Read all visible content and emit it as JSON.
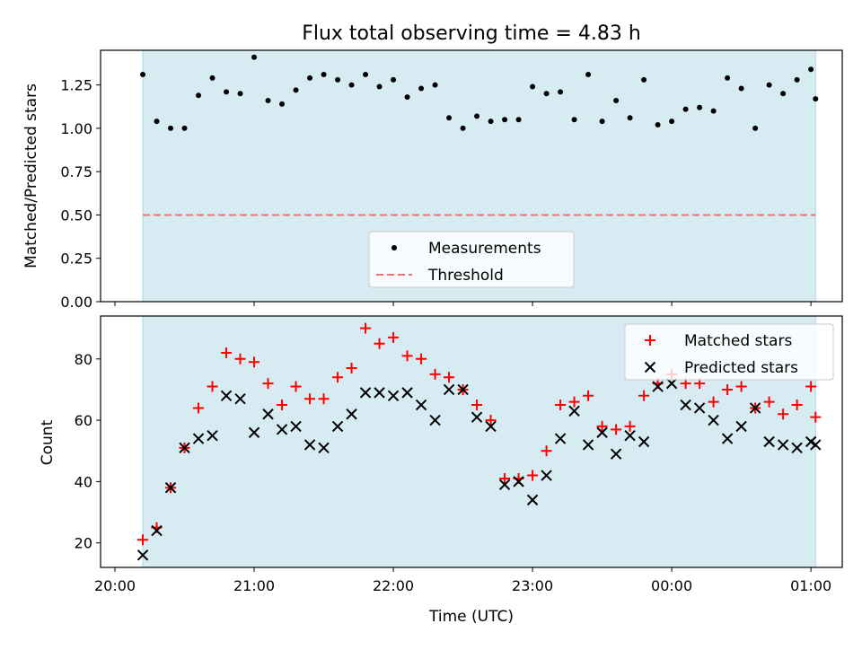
{
  "colors": {
    "span": "#add8e6",
    "measurement": "#000000",
    "threshold": "#f07070",
    "matched": "#ff0000",
    "predicted": "#000000"
  },
  "chart_data": [
    {
      "type": "scatter",
      "title": "Flux total observing time = 4.83 h",
      "xlabel": "",
      "ylabel": "Matched/Predicted stars",
      "xlim": [
        "20:00",
        "01:00"
      ],
      "ylim": [
        0,
        1.45
      ],
      "yticks": [
        "0.00",
        "0.25",
        "0.50",
        "0.75",
        "1.00",
        "1.25"
      ],
      "observing_span": [
        "20:12",
        "01:02"
      ],
      "legend_position": "lower-center",
      "series": [
        {
          "name": "Measurements",
          "marker": "dot",
          "x": [
            "20:12",
            "20:18",
            "20:24",
            "20:30",
            "20:36",
            "20:42",
            "20:48",
            "20:54",
            "21:00",
            "21:06",
            "21:12",
            "21:18",
            "21:24",
            "21:30",
            "21:36",
            "21:42",
            "21:48",
            "21:54",
            "22:00",
            "22:06",
            "22:12",
            "22:18",
            "22:24",
            "22:30",
            "22:36",
            "22:42",
            "22:48",
            "22:54",
            "23:00",
            "23:06",
            "23:12",
            "23:18",
            "23:24",
            "23:30",
            "23:36",
            "23:42",
            "23:48",
            "23:54",
            "00:00",
            "00:06",
            "00:12",
            "00:18",
            "00:24",
            "00:30",
            "00:36",
            "00:42",
            "00:48",
            "00:54",
            "01:00",
            "01:02"
          ],
          "values": [
            1.31,
            1.04,
            1.0,
            1.0,
            1.19,
            1.29,
            1.21,
            1.2,
            1.41,
            1.16,
            1.14,
            1.22,
            1.29,
            1.31,
            1.28,
            1.25,
            1.31,
            1.24,
            1.28,
            1.18,
            1.23,
            1.25,
            1.06,
            1.0,
            1.07,
            1.04,
            1.05,
            1.05,
            1.24,
            1.2,
            1.21,
            1.05,
            1.31,
            1.04,
            1.16,
            1.06,
            1.28,
            1.02,
            1.04,
            1.11,
            1.12,
            1.1,
            1.29,
            1.23,
            1.0,
            1.25,
            1.2,
            1.28,
            1.34,
            1.17
          ]
        },
        {
          "name": "Threshold",
          "marker": "dashed-line",
          "x": [
            "20:12",
            "01:02"
          ],
          "values": [
            0.5,
            0.5
          ]
        }
      ]
    },
    {
      "type": "scatter",
      "title": "",
      "xlabel": "Time (UTC)",
      "ylabel": "Count",
      "xlim": [
        "20:00",
        "01:00"
      ],
      "ylim": [
        12,
        94
      ],
      "yticks": [
        "20",
        "40",
        "60",
        "80"
      ],
      "xticks": [
        "20:00",
        "21:00",
        "22:00",
        "23:00",
        "00:00",
        "01:00"
      ],
      "observing_span": [
        "20:12",
        "01:02"
      ],
      "legend_position": "upper-right",
      "series": [
        {
          "name": "Matched stars",
          "marker": "plus",
          "x": [
            "20:12",
            "20:18",
            "20:24",
            "20:30",
            "20:36",
            "20:42",
            "20:48",
            "20:54",
            "21:00",
            "21:06",
            "21:12",
            "21:18",
            "21:24",
            "21:30",
            "21:36",
            "21:42",
            "21:48",
            "21:54",
            "22:00",
            "22:06",
            "22:12",
            "22:18",
            "22:24",
            "22:30",
            "22:36",
            "22:42",
            "22:48",
            "22:54",
            "23:00",
            "23:06",
            "23:12",
            "23:18",
            "23:24",
            "23:30",
            "23:36",
            "23:42",
            "23:48",
            "23:54",
            "00:00",
            "00:06",
            "00:12",
            "00:18",
            "00:24",
            "00:30",
            "00:36",
            "00:42",
            "00:48",
            "00:54",
            "01:00",
            "01:02"
          ],
          "values": [
            21,
            25,
            38,
            51,
            64,
            71,
            82,
            80,
            79,
            72,
            65,
            71,
            67,
            67,
            74,
            77,
            90,
            85,
            87,
            81,
            80,
            75,
            74,
            70,
            65,
            60,
            41,
            41,
            42,
            50,
            65,
            66,
            68,
            58,
            57,
            58,
            68,
            72,
            75,
            72,
            72,
            66,
            70,
            71,
            64,
            66,
            62,
            65,
            71,
            61
          ]
        },
        {
          "name": "Predicted stars",
          "marker": "x",
          "x": [
            "20:12",
            "20:18",
            "20:24",
            "20:30",
            "20:36",
            "20:42",
            "20:48",
            "20:54",
            "21:00",
            "21:06",
            "21:12",
            "21:18",
            "21:24",
            "21:30",
            "21:36",
            "21:42",
            "21:48",
            "21:54",
            "22:00",
            "22:06",
            "22:12",
            "22:18",
            "22:24",
            "22:30",
            "22:36",
            "22:42",
            "22:48",
            "22:54",
            "23:00",
            "23:06",
            "23:12",
            "23:18",
            "23:24",
            "23:30",
            "23:36",
            "23:42",
            "23:48",
            "23:54",
            "00:00",
            "00:06",
            "00:12",
            "00:18",
            "00:24",
            "00:30",
            "00:36",
            "00:42",
            "00:48",
            "00:54",
            "01:00",
            "01:02"
          ],
          "values": [
            16,
            24,
            38,
            51,
            54,
            55,
            68,
            67,
            56,
            62,
            57,
            58,
            52,
            51,
            58,
            62,
            69,
            69,
            68,
            69,
            65,
            60,
            70,
            70,
            61,
            58,
            39,
            40,
            34,
            42,
            54,
            63,
            52,
            56,
            49,
            55,
            53,
            71,
            72,
            65,
            64,
            60,
            54,
            58,
            64,
            53,
            52,
            51,
            53,
            52
          ]
        }
      ]
    }
  ]
}
